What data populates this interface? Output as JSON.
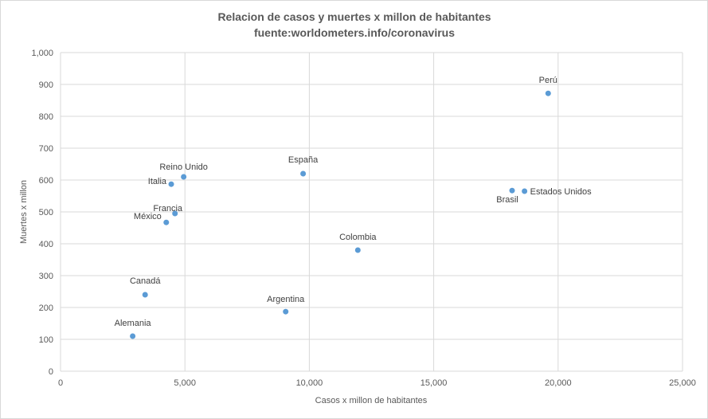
{
  "chart_data": {
    "type": "scatter",
    "title": "Relacion de casos y muertes x millon de habitantes",
    "subtitle": "fuente:worldometers.info/coronavirus",
    "xlabel": "Casos x millon de habitantes",
    "ylabel": "Muertes x millon",
    "xlim": [
      0,
      25000
    ],
    "ylim": [
      0,
      1000
    ],
    "x_ticks": [
      0,
      5000,
      10000,
      15000,
      20000,
      25000
    ],
    "x_tick_labels": [
      "0",
      "5,000",
      "10,000",
      "15,000",
      "20,000",
      "25,000"
    ],
    "y_ticks": [
      0,
      100,
      200,
      300,
      400,
      500,
      600,
      700,
      800,
      900,
      1000
    ],
    "y_tick_labels": [
      "0",
      "100",
      "200",
      "300",
      "400",
      "500",
      "600",
      "700",
      "800",
      "900",
      "1,000"
    ],
    "grid": true,
    "legend": "none",
    "marker_color": "#5b9bd5",
    "points": [
      {
        "label": "Perú",
        "x": 19600,
        "y": 872
      },
      {
        "label": "Estados Unidos",
        "x": 18650,
        "y": 565
      },
      {
        "label": "Brasil",
        "x": 18150,
        "y": 567
      },
      {
        "label": "España",
        "x": 9750,
        "y": 620
      },
      {
        "label": "Reino Unido",
        "x": 4950,
        "y": 610
      },
      {
        "label": "Italia",
        "x": 4450,
        "y": 587
      },
      {
        "label": "Francia",
        "x": 4600,
        "y": 495
      },
      {
        "label": "México",
        "x": 4250,
        "y": 467
      },
      {
        "label": "Colombia",
        "x": 11950,
        "y": 380
      },
      {
        "label": "Canadá",
        "x": 3400,
        "y": 240
      },
      {
        "label": "Argentina",
        "x": 9050,
        "y": 187
      },
      {
        "label": "Alemania",
        "x": 2900,
        "y": 110
      }
    ]
  }
}
